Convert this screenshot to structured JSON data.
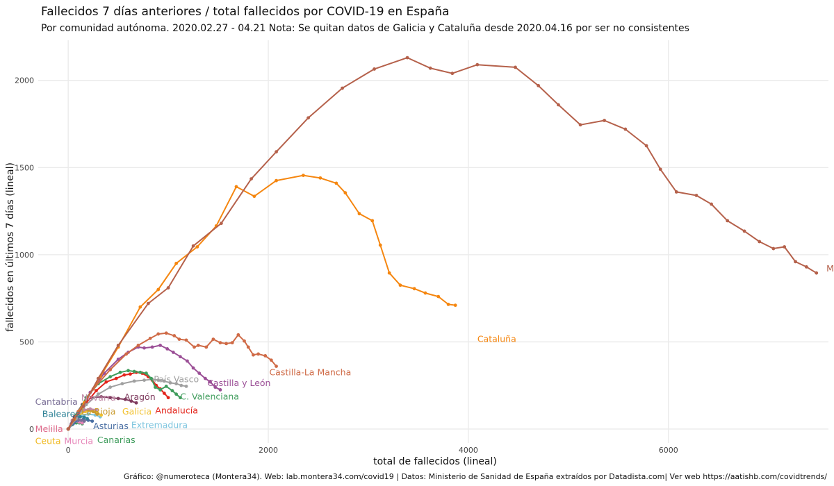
{
  "chart_data": {
    "type": "line",
    "title": "Fallecidos 7 días anteriores / total fallecidos por COVID-19 en España",
    "subtitle": "Por comunidad autónoma. 2020.02.27 - 04.21 Nota: Se quitan datos de Galicia y Cataluña desde 2020.04.16 por ser no consistentes",
    "xlabel": "total de fallecidos (lineal)",
    "ylabel": "fallecidos en últimos 7 días (lineal)",
    "caption": "Gráfico: @numeroteca (Montera34). Web: lab.montera34.com/covid19 | Datos: Ministerio de Sanidad de España extraídos por Datadista.com| Ver web https://aatishb.com/covidtrends/",
    "xlim": [
      -300,
      7600
    ],
    "ylim": [
      -80,
      2230
    ],
    "x_ticks": [
      0,
      2000,
      4000,
      6000
    ],
    "y_ticks": [
      0,
      500,
      1000,
      1500,
      2000
    ],
    "grid": true,
    "legend": "none",
    "series": [
      {
        "name": "Madrid",
        "color": "#b5614b",
        "label_at": [
          7580,
          920
        ],
        "x": [
          0,
          50,
          150,
          300,
          500,
          800,
          1000,
          1250,
          1530,
          1830,
          2080,
          2400,
          2740,
          3060,
          3390,
          3620,
          3840,
          4090,
          4470,
          4700,
          4900,
          5120,
          5360,
          5570,
          5780,
          5920,
          6080,
          6280,
          6430,
          6590,
          6760,
          6910,
          7050,
          7160,
          7270,
          7380,
          7480
        ],
        "values": [
          0,
          50,
          130,
          290,
          480,
          720,
          810,
          1050,
          1180,
          1435,
          1590,
          1785,
          1955,
          2065,
          2130,
          2070,
          2040,
          2090,
          2075,
          1970,
          1860,
          1745,
          1770,
          1720,
          1625,
          1490,
          1360,
          1340,
          1290,
          1195,
          1135,
          1075,
          1035,
          1045,
          960,
          930,
          895
        ]
      },
      {
        "name": "Cataluña",
        "color": "#f5860f",
        "label_at": [
          4090,
          515
        ],
        "x": [
          0,
          60,
          160,
          320,
          500,
          720,
          900,
          1080,
          1290,
          1480,
          1680,
          1860,
          2080,
          2350,
          2520,
          2680,
          2770,
          2910,
          3040,
          3120,
          3210,
          3320,
          3460,
          3570,
          3700,
          3800,
          3870
        ],
        "values": [
          0,
          55,
          150,
          300,
          470,
          700,
          800,
          950,
          1045,
          1165,
          1390,
          1335,
          1425,
          1455,
          1440,
          1410,
          1355,
          1235,
          1195,
          1055,
          895,
          825,
          805,
          780,
          760,
          715,
          710
        ]
      },
      {
        "name": "Castilla-La Mancha",
        "color": "#cf6a46",
        "label_at": [
          2010,
          325
        ],
        "x": [
          0,
          100,
          250,
          420,
          580,
          700,
          820,
          900,
          980,
          1060,
          1110,
          1180,
          1260,
          1300,
          1380,
          1450,
          1520,
          1580,
          1640,
          1700,
          1760,
          1800,
          1850,
          1900,
          1970,
          2030,
          2080
        ],
        "values": [
          0,
          100,
          230,
          340,
          430,
          480,
          520,
          545,
          550,
          535,
          515,
          510,
          470,
          480,
          470,
          515,
          495,
          490,
          495,
          540,
          505,
          470,
          425,
          430,
          420,
          395,
          360
        ]
      },
      {
        "name": "Castilla y León",
        "color": "#9b4f96",
        "label_at": [
          1390,
          262
        ],
        "x": [
          0,
          100,
          220,
          360,
          500,
          600,
          700,
          760,
          840,
          920,
          990,
          1050,
          1120,
          1190,
          1250,
          1310,
          1370,
          1420,
          1470,
          1520
        ],
        "values": [
          0,
          90,
          210,
          320,
          400,
          440,
          470,
          465,
          470,
          480,
          460,
          440,
          415,
          390,
          350,
          320,
          290,
          270,
          240,
          225
        ]
      },
      {
        "name": "C. Valenciana",
        "color": "#3f9c5c",
        "label_at": [
          1120,
          185
        ],
        "x": [
          0,
          80,
          180,
          300,
          420,
          520,
          600,
          660,
          720,
          780,
          830,
          870,
          920,
          980,
          1040,
          1080,
          1120
        ],
        "values": [
          0,
          80,
          180,
          260,
          300,
          325,
          335,
          330,
          325,
          320,
          290,
          240,
          225,
          245,
          220,
          200,
          180
        ]
      },
      {
        "name": "País Vasco",
        "color": "#a0a0a0",
        "label_at": [
          855,
          285
        ],
        "x": [
          0,
          80,
          180,
          300,
          420,
          540,
          660,
          760,
          840,
          900,
          960,
          1020,
          1080,
          1130,
          1180
        ],
        "values": [
          0,
          60,
          140,
          200,
          240,
          260,
          275,
          280,
          285,
          280,
          275,
          265,
          260,
          250,
          245
        ]
      },
      {
        "name": "Andalucía",
        "color": "#e3241b",
        "label_at": [
          870,
          105
        ],
        "x": [
          0,
          80,
          180,
          280,
          380,
          480,
          560,
          620,
          680,
          740,
          800,
          840,
          880,
          920,
          960,
          1000
        ],
        "values": [
          0,
          70,
          150,
          220,
          270,
          290,
          310,
          315,
          325,
          320,
          300,
          280,
          250,
          230,
          205,
          180
        ]
      },
      {
        "name": "Aragón",
        "color": "#7f3b5e",
        "label_at": [
          560,
          182
        ],
        "x": [
          0,
          60,
          140,
          230,
          330,
          420,
          500,
          570,
          630,
          680
        ],
        "values": [
          0,
          70,
          140,
          180,
          185,
          180,
          175,
          170,
          160,
          150
        ]
      },
      {
        "name": "Navarra",
        "color": "#bf86a4",
        "label_at": [
          130,
          178
        ],
        "x": [
          0,
          40,
          100,
          160,
          220,
          280
        ],
        "values": [
          0,
          50,
          90,
          110,
          115,
          110
        ]
      },
      {
        "name": "Cantabria",
        "color": "#7a6f96",
        "label_at": [
          -330,
          155
        ],
        "x": [
          0,
          30,
          60,
          100,
          130,
          160
        ],
        "values": [
          0,
          30,
          50,
          55,
          50,
          45
        ]
      },
      {
        "name": "Baleares",
        "color": "#2f8296",
        "label_at": [
          -260,
          85
        ],
        "x": [
          0,
          40,
          80,
          120,
          160,
          190
        ],
        "values": [
          0,
          40,
          65,
          70,
          68,
          60
        ]
      },
      {
        "name": "La Rioja",
        "color": "#c89a2e",
        "label_at": [
          130,
          100
        ],
        "x": [
          0,
          50,
          100,
          150,
          200,
          250,
          290
        ],
        "values": [
          0,
          50,
          85,
          105,
          110,
          100,
          85
        ]
      },
      {
        "name": "Galicia",
        "color": "#f2c12e",
        "label_at": [
          540,
          100
        ],
        "x": [
          0,
          50,
          110,
          170,
          230,
          280,
          330
        ],
        "values": [
          0,
          45,
          80,
          100,
          105,
          95,
          80
        ]
      },
      {
        "name": "Asturias",
        "color": "#4a6fa3",
        "label_at": [
          250,
          15
        ],
        "x": [
          0,
          50,
          100,
          150,
          200,
          240
        ],
        "values": [
          0,
          30,
          50,
          55,
          50,
          45
        ]
      },
      {
        "name": "Extremadura",
        "color": "#7cc4de",
        "label_at": [
          630,
          22
        ],
        "x": [
          0,
          60,
          130,
          200,
          270,
          320
        ],
        "values": [
          0,
          45,
          75,
          85,
          80,
          70
        ]
      },
      {
        "name": "Melilla",
        "color": "#e06a8c",
        "label_at": [
          -330,
          0
        ],
        "x": [
          0,
          1,
          2
        ],
        "values": [
          0,
          1,
          1
        ]
      },
      {
        "name": "Ceuta",
        "color": "#f0b81d",
        "label_at": [
          -330,
          -70
        ],
        "x": [
          0,
          2,
          4
        ],
        "values": [
          0,
          2,
          2
        ]
      },
      {
        "name": "Murcia",
        "color": "#e684b8",
        "label_at": [
          -40,
          -70
        ],
        "x": [
          0,
          40,
          80,
          110,
          140
        ],
        "values": [
          0,
          30,
          45,
          40,
          35
        ]
      },
      {
        "name": "Canarias",
        "color": "#3f9c5c",
        "label_at": [
          290,
          -65
        ],
        "x": [
          0,
          40,
          80,
          110,
          140
        ],
        "values": [
          0,
          25,
          35,
          35,
          30
        ]
      }
    ]
  }
}
